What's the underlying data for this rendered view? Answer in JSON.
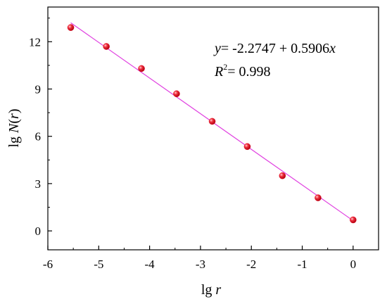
{
  "chart_data": {
    "type": "scatter",
    "xlabel": {
      "prefix": "lg ",
      "var": "r"
    },
    "ylabel": {
      "prefix": "lg ",
      "var": "N",
      "open": "(",
      "arg": "r",
      "close": ")"
    },
    "xlim": [
      -6,
      0.5
    ],
    "ylim": [
      -1.2,
      14.2
    ],
    "xticks": [
      -6,
      -5,
      -4,
      -3,
      -2,
      -1,
      0
    ],
    "yticks": [
      0,
      3,
      6,
      9,
      12
    ],
    "x_tick_labels": [
      "-6",
      "-5",
      "-4",
      "-3",
      "-2",
      "-1",
      "0"
    ],
    "y_tick_labels": [
      "0",
      "3",
      "6",
      "9",
      "12"
    ],
    "grid": false,
    "series": [
      {
        "points": [
          {
            "x": -5.55,
            "y": 12.9
          },
          {
            "x": -4.85,
            "y": 11.7
          },
          {
            "x": -4.16,
            "y": 10.3
          },
          {
            "x": -3.47,
            "y": 8.7
          },
          {
            "x": -2.77,
            "y": 6.95
          },
          {
            "x": -2.08,
            "y": 5.35
          },
          {
            "x": -1.39,
            "y": 3.5
          },
          {
            "x": -0.69,
            "y": 2.1
          },
          {
            "x": 0.0,
            "y": 0.7
          }
        ],
        "color": "#e8132a"
      }
    ],
    "fit_line": {
      "x": [
        -5.55,
        0.0
      ],
      "y": [
        13.2,
        0.65
      ],
      "color": "#e040e0"
    },
    "annotation": {
      "eq_var": "y",
      "eq_text": "= -2.2747 + 0.5906",
      "eq_x": "x",
      "r2_var": "R",
      "r2_sup": "2",
      "r2_text": "= 0.998"
    }
  }
}
